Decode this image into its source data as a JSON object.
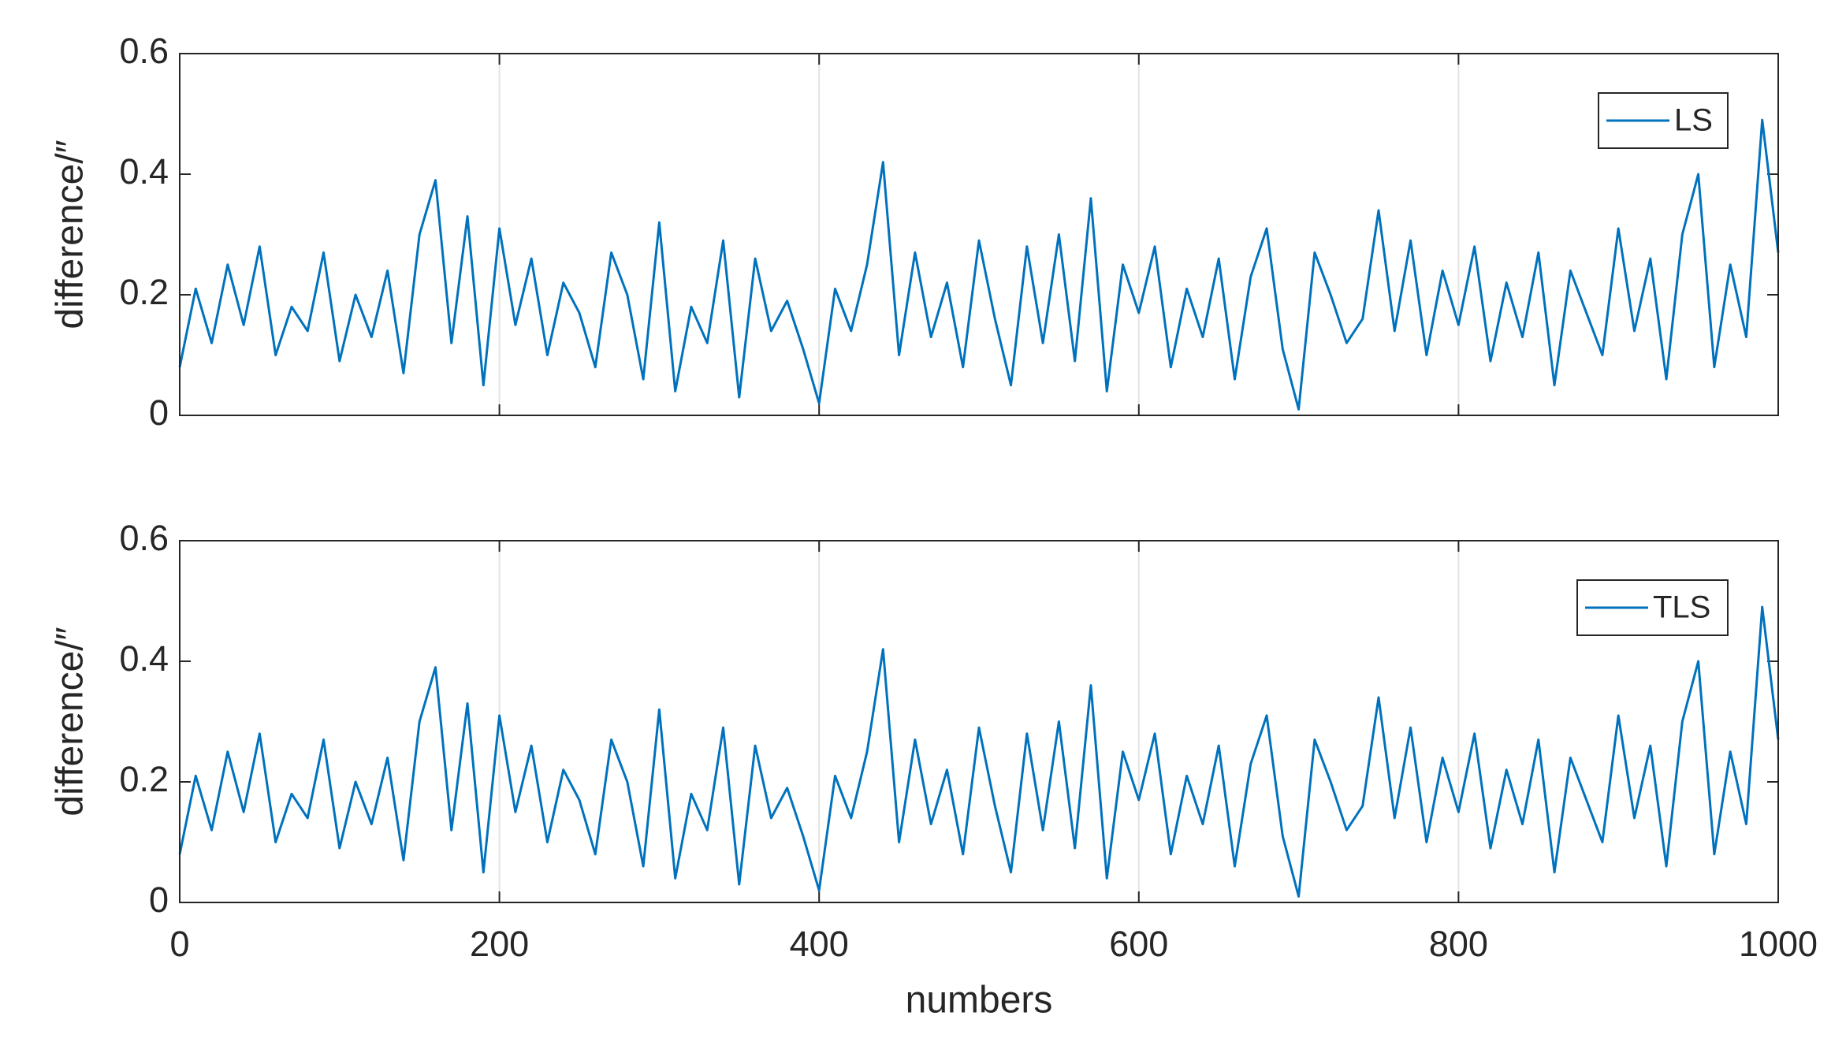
{
  "chart_data": [
    {
      "type": "line",
      "ylabel": "difference/″",
      "x": [
        0,
        10,
        20,
        30,
        40,
        50,
        60,
        70,
        80,
        90,
        100,
        110,
        120,
        130,
        140,
        150,
        160,
        170,
        180,
        190,
        200,
        210,
        220,
        230,
        240,
        250,
        260,
        270,
        280,
        290,
        300,
        310,
        320,
        330,
        340,
        350,
        360,
        370,
        380,
        390,
        400,
        410,
        420,
        430,
        440,
        450,
        460,
        470,
        480,
        490,
        500,
        510,
        520,
        530,
        540,
        550,
        560,
        570,
        580,
        590,
        600,
        610,
        620,
        630,
        640,
        650,
        660,
        670,
        680,
        690,
        700,
        710,
        720,
        730,
        740,
        750,
        760,
        770,
        780,
        790,
        800,
        810,
        820,
        830,
        840,
        850,
        860,
        870,
        880,
        890,
        900,
        910,
        920,
        930,
        940,
        950,
        960,
        970,
        980,
        990,
        1000
      ],
      "series": [
        {
          "name": "LS",
          "color": "#0072bd",
          "values": [
            0.08,
            0.21,
            0.12,
            0.25,
            0.15,
            0.28,
            0.1,
            0.18,
            0.14,
            0.27,
            0.09,
            0.2,
            0.13,
            0.24,
            0.07,
            0.3,
            0.39,
            0.12,
            0.33,
            0.05,
            0.31,
            0.15,
            0.26,
            0.1,
            0.22,
            0.17,
            0.08,
            0.27,
            0.2,
            0.06,
            0.32,
            0.04,
            0.18,
            0.12,
            0.29,
            0.03,
            0.26,
            0.14,
            0.19,
            0.11,
            0.02,
            0.21,
            0.14,
            0.25,
            0.42,
            0.1,
            0.27,
            0.13,
            0.22,
            0.08,
            0.29,
            0.16,
            0.05,
            0.28,
            0.12,
            0.3,
            0.09,
            0.36,
            0.04,
            0.25,
            0.17,
            0.28,
            0.08,
            0.21,
            0.13,
            0.26,
            0.06,
            0.23,
            0.31,
            0.11,
            0.01,
            0.27,
            0.2,
            0.12,
            0.16,
            0.34,
            0.14,
            0.29,
            0.1,
            0.24,
            0.15,
            0.28,
            0.09,
            0.22,
            0.13,
            0.27,
            0.05,
            0.24,
            0.17,
            0.1,
            0.31,
            0.14,
            0.26,
            0.06,
            0.3,
            0.4,
            0.08,
            0.25,
            0.13,
            0.49,
            0.27
          ]
        }
      ],
      "xlim": [
        0,
        1000
      ],
      "xticks": [
        0,
        200,
        400,
        600,
        800,
        1000
      ],
      "ylim": [
        0,
        0.6
      ],
      "yticks": [
        0,
        0.2,
        0.4,
        0.6
      ],
      "grid": "x",
      "legend": "upper right"
    },
    {
      "type": "line",
      "ylabel": "difference/″",
      "xlabel": "numbers",
      "x": [
        0,
        10,
        20,
        30,
        40,
        50,
        60,
        70,
        80,
        90,
        100,
        110,
        120,
        130,
        140,
        150,
        160,
        170,
        180,
        190,
        200,
        210,
        220,
        230,
        240,
        250,
        260,
        270,
        280,
        290,
        300,
        310,
        320,
        330,
        340,
        350,
        360,
        370,
        380,
        390,
        400,
        410,
        420,
        430,
        440,
        450,
        460,
        470,
        480,
        490,
        500,
        510,
        520,
        530,
        540,
        550,
        560,
        570,
        580,
        590,
        600,
        610,
        620,
        630,
        640,
        650,
        660,
        670,
        680,
        690,
        700,
        710,
        720,
        730,
        740,
        750,
        760,
        770,
        780,
        790,
        800,
        810,
        820,
        830,
        840,
        850,
        860,
        870,
        880,
        890,
        900,
        910,
        920,
        930,
        940,
        950,
        960,
        970,
        980,
        990,
        1000
      ],
      "series": [
        {
          "name": "TLS",
          "color": "#0072bd",
          "values": [
            0.08,
            0.21,
            0.12,
            0.25,
            0.15,
            0.28,
            0.1,
            0.18,
            0.14,
            0.27,
            0.09,
            0.2,
            0.13,
            0.24,
            0.07,
            0.3,
            0.39,
            0.12,
            0.33,
            0.05,
            0.31,
            0.15,
            0.26,
            0.1,
            0.22,
            0.17,
            0.08,
            0.27,
            0.2,
            0.06,
            0.32,
            0.04,
            0.18,
            0.12,
            0.29,
            0.03,
            0.26,
            0.14,
            0.19,
            0.11,
            0.02,
            0.21,
            0.14,
            0.25,
            0.42,
            0.1,
            0.27,
            0.13,
            0.22,
            0.08,
            0.29,
            0.16,
            0.05,
            0.28,
            0.12,
            0.3,
            0.09,
            0.36,
            0.04,
            0.25,
            0.17,
            0.28,
            0.08,
            0.21,
            0.13,
            0.26,
            0.06,
            0.23,
            0.31,
            0.11,
            0.01,
            0.27,
            0.2,
            0.12,
            0.16,
            0.34,
            0.14,
            0.29,
            0.1,
            0.24,
            0.15,
            0.28,
            0.09,
            0.22,
            0.13,
            0.27,
            0.05,
            0.24,
            0.17,
            0.1,
            0.31,
            0.14,
            0.26,
            0.06,
            0.3,
            0.4,
            0.08,
            0.25,
            0.13,
            0.49,
            0.27
          ]
        }
      ],
      "xlim": [
        0,
        1000
      ],
      "xticks": [
        0,
        200,
        400,
        600,
        800,
        1000
      ],
      "ylim": [
        0,
        0.6
      ],
      "yticks": [
        0,
        0.2,
        0.4,
        0.6
      ],
      "grid": "x",
      "legend": "upper right"
    }
  ]
}
